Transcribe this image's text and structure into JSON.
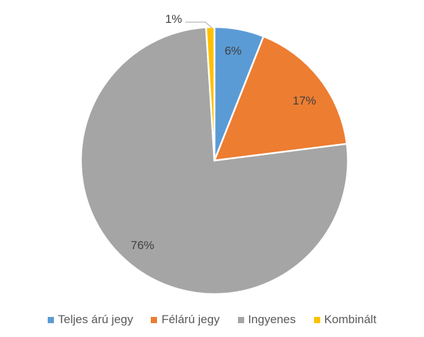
{
  "chart_data": {
    "type": "pie",
    "categories": [
      "Teljes árú jegy",
      "Félárú jegy",
      "Ingyenes",
      "Kombinált"
    ],
    "values": [
      6,
      17,
      76,
      1
    ],
    "labels": [
      "6%",
      "17%",
      "76%",
      "1%"
    ],
    "colors": [
      "#5B9BD5",
      "#ED7D31",
      "#A5A5A5",
      "#FFC000"
    ],
    "legend": "bottom"
  }
}
